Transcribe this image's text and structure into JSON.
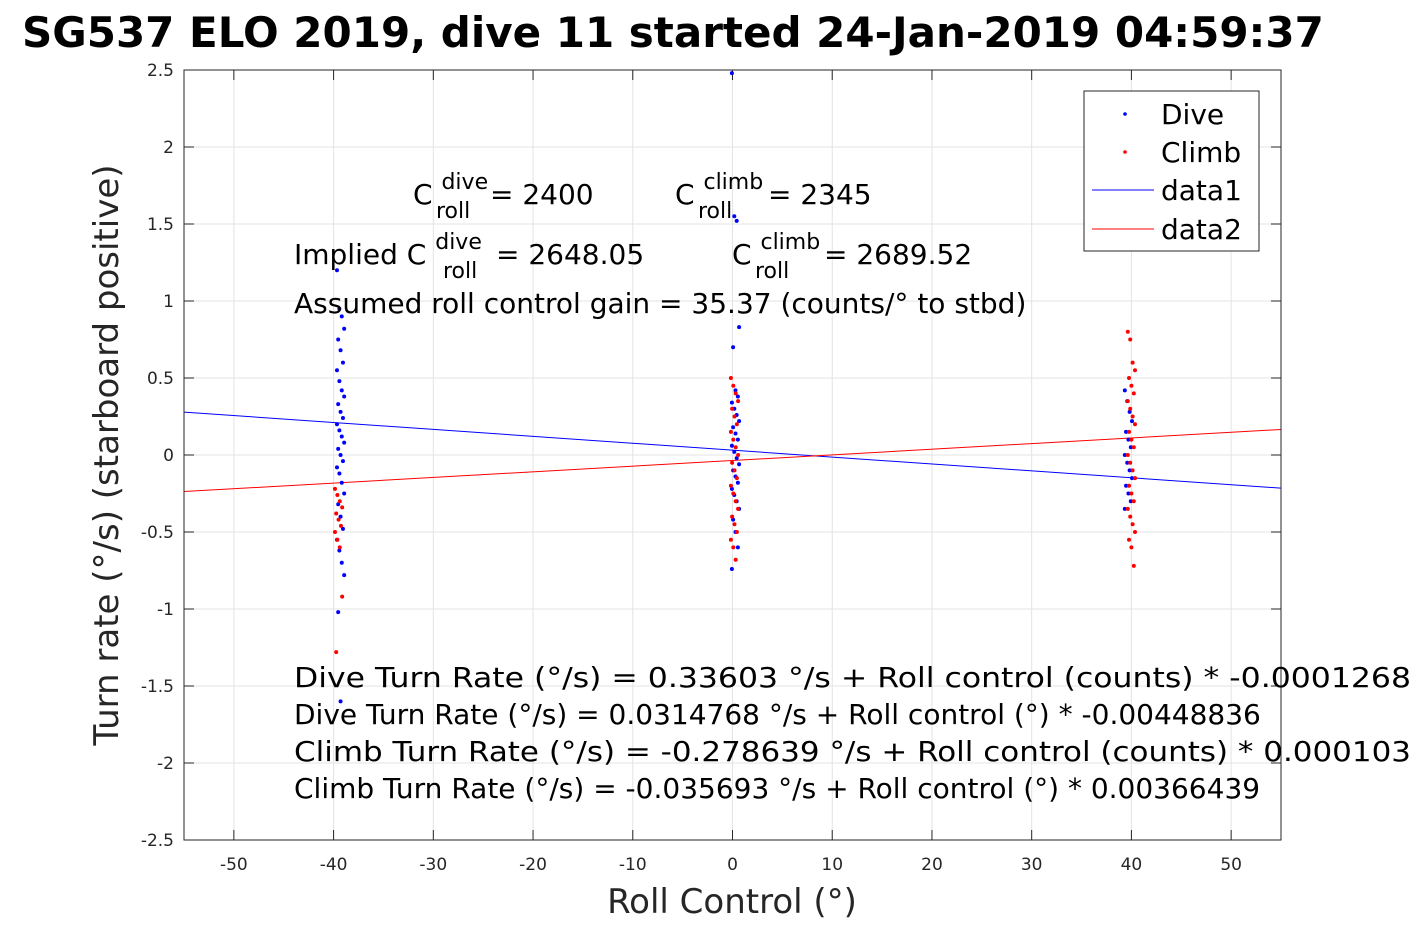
{
  "chart_data": {
    "type": "scatter",
    "title": "SG537 ELO 2019, dive 11 started 24-Jan-2019 04:59:37",
    "xlabel": "Roll Control (°)",
    "ylabel": "Turn rate (°/s) (starboard positive)",
    "xlim": [
      -55,
      55
    ],
    "ylim": [
      -2.5,
      2.5
    ],
    "xticks": [
      -50,
      -40,
      -30,
      -20,
      -10,
      0,
      10,
      20,
      30,
      40,
      50
    ],
    "yticks": [
      -2.5,
      -2,
      -1.5,
      -1,
      -0.5,
      0,
      0.5,
      1,
      1.5,
      2,
      2.5
    ],
    "xtick_labels": [
      "-50",
      "-40",
      "-30",
      "-20",
      "-10",
      "0",
      "10",
      "20",
      "30",
      "40",
      "50"
    ],
    "ytick_labels": [
      "-2.5",
      "-2",
      "-1.5",
      "-1",
      "-0.5",
      "0",
      "0.5",
      "1",
      "1.5",
      "2",
      "2.5"
    ],
    "grid": true,
    "legend_position": "top-right",
    "series": [
      {
        "name": "Dive",
        "kind": "points",
        "color": "#0000ff",
        "clusters": [
          {
            "x": -39.3,
            "y_values": [
              1.2,
              0.95,
              0.9,
              0.82,
              0.75,
              0.68,
              0.6,
              0.55,
              0.48,
              0.42,
              0.38,
              0.33,
              0.28,
              0.24,
              0.2,
              0.16,
              0.12,
              0.08,
              0.04,
              0.0,
              -0.04,
              -0.08,
              -0.12,
              -0.18,
              -0.25,
              -0.32,
              -0.4,
              -0.48,
              -0.55,
              -0.62,
              -0.7,
              -0.78,
              -1.02,
              -1.6
            ]
          },
          {
            "x": 0.3,
            "y_values": [
              2.48,
              1.55,
              1.52,
              0.83,
              0.7,
              0.42,
              0.38,
              0.34,
              0.3,
              0.26,
              0.22,
              0.18,
              0.14,
              0.1,
              0.06,
              0.02,
              -0.02,
              -0.06,
              -0.1,
              -0.14,
              -0.18,
              -0.22,
              -0.26,
              -0.3,
              -0.35,
              -0.42,
              -0.5,
              -0.6,
              -0.74
            ]
          },
          {
            "x": 39.7,
            "y_values": [
              0.42,
              0.35,
              0.28,
              0.22,
              0.15,
              0.1,
              0.05,
              0.0,
              -0.05,
              -0.1,
              -0.15,
              -0.2,
              -0.25,
              -0.3,
              -0.35
            ]
          }
        ]
      },
      {
        "name": "Climb",
        "kind": "points",
        "color": "#ff0000",
        "clusters": [
          {
            "x": -39.5,
            "y_values": [
              -0.22,
              -0.26,
              -0.3,
              -0.34,
              -0.38,
              -0.42,
              -0.46,
              -0.5,
              -0.55,
              -0.6,
              -0.92,
              -1.28
            ]
          },
          {
            "x": 0.2,
            "y_values": [
              0.5,
              0.45,
              0.4,
              0.35,
              0.3,
              0.25,
              0.2,
              0.15,
              0.1,
              0.05,
              0.0,
              -0.05,
              -0.1,
              -0.15,
              -0.2,
              -0.25,
              -0.3,
              -0.35,
              -0.4,
              -0.45,
              -0.5,
              -0.55,
              -0.6,
              -0.68
            ]
          },
          {
            "x": 40.0,
            "y_values": [
              0.8,
              0.75,
              0.6,
              0.55,
              0.5,
              0.45,
              0.4,
              0.35,
              0.3,
              0.25,
              0.2,
              0.15,
              0.1,
              0.05,
              0.0,
              -0.05,
              -0.1,
              -0.15,
              -0.2,
              -0.25,
              -0.3,
              -0.35,
              -0.4,
              -0.45,
              -0.5,
              -0.55,
              -0.6,
              -0.72
            ]
          }
        ]
      },
      {
        "name": "data1",
        "kind": "line",
        "color": "#0000ff",
        "intercept": 0.0314768,
        "slope": -0.00448836
      },
      {
        "name": "data2",
        "kind": "line",
        "color": "#ff0000",
        "intercept": -0.035693,
        "slope": 0.00366439
      }
    ]
  },
  "annotations": {
    "c_roll_dive": {
      "base": "C",
      "sup": "dive",
      "sub": "roll",
      "value": " = 2400"
    },
    "c_roll_climb": {
      "base": "C",
      "sup": "climb",
      "sub": "roll",
      "value": " = 2345"
    },
    "implied_prefix": "Implied C",
    "implied_dive": {
      "sup": "dive",
      "sub": "roll",
      "value": " = 2648.05"
    },
    "implied_climb": {
      "base": "C",
      "sup": "climb",
      "sub": "roll",
      "value": " = 2689.52"
    },
    "gain": "Assumed roll control gain = 35.37 (counts/° to stbd)",
    "eq1": "Dive Turn Rate (°/s) = 0.33603 °/s + Roll control (counts) * -0.0001268",
    "eq2": "Dive Turn Rate (°/s) = 0.0314768 °/s + Roll control (°) * -0.00448836",
    "eq3": "Climb Turn Rate (°/s) = -0.278639 °/s + Roll control (counts) * 0.000103",
    "eq4": "Climb Turn Rate (°/s) = -0.035693 °/s + Roll control (°) * 0.00366439"
  }
}
